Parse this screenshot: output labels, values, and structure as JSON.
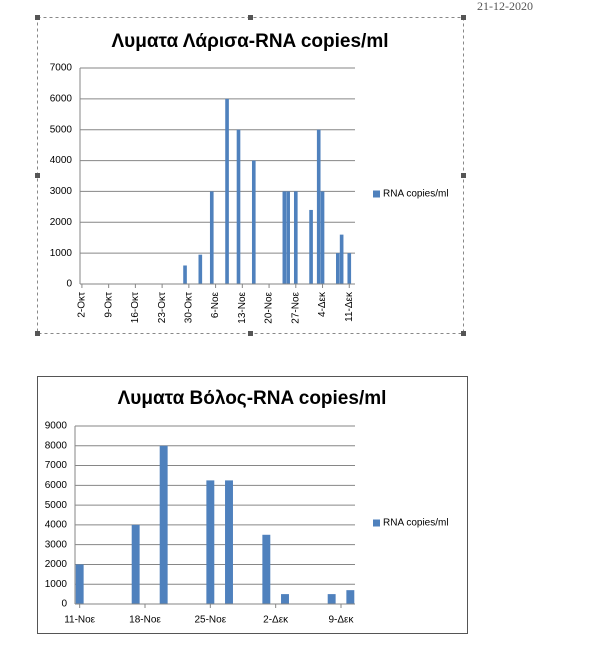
{
  "date": "21-12-2020",
  "chart_data": [
    {
      "type": "bar",
      "title": "Λυματα Λάρισα-RNA copies/ml",
      "categories": [
        "2-Οκτ",
        null,
        null,
        null,
        null,
        null,
        null,
        "9-Οκτ",
        null,
        null,
        null,
        null,
        null,
        null,
        "16-Οκτ",
        null,
        null,
        null,
        null,
        null,
        null,
        "23-Οκτ",
        null,
        null,
        null,
        null,
        null,
        null,
        "30-Οκτ",
        null,
        null,
        null,
        null,
        null,
        null,
        "6-Νοε",
        null,
        null,
        null,
        null,
        null,
        null,
        "13-Νοε",
        null,
        null,
        null,
        null,
        null,
        null,
        "20-Νοε",
        null,
        null,
        null,
        null,
        null,
        null,
        "27-Νοε",
        null,
        null,
        null,
        null,
        null,
        null,
        "4-Δεκ",
        null,
        null,
        null,
        null,
        null,
        null,
        "11-Δεκ",
        null
      ],
      "series": [
        {
          "name": "RNA copies/ml",
          "color": "#4f81bd",
          "values": [
            null,
            null,
            null,
            null,
            null,
            null,
            null,
            null,
            null,
            null,
            null,
            null,
            null,
            null,
            null,
            null,
            null,
            null,
            null,
            null,
            null,
            null,
            null,
            null,
            null,
            null,
            null,
            600,
            null,
            null,
            null,
            950,
            null,
            null,
            3000,
            null,
            null,
            null,
            6000,
            null,
            null,
            5000,
            null,
            null,
            null,
            4000,
            null,
            null,
            null,
            null,
            null,
            null,
            null,
            3000,
            3000,
            null,
            3000,
            null,
            null,
            null,
            2400,
            null,
            5000,
            3000,
            null,
            null,
            null,
            1000,
            1600,
            null,
            1000,
            null
          ]
        }
      ],
      "ylim": [
        0,
        7000
      ],
      "yticks": [
        0,
        1000,
        2000,
        3000,
        4000,
        5000,
        6000,
        7000
      ],
      "grid": true,
      "legend": "right"
    },
    {
      "type": "bar",
      "title": "Λυματα Βόλος-RNA copies/ml",
      "categories": [
        "11-Νοε",
        null,
        null,
        null,
        null,
        null,
        null,
        "18-Νοε",
        null,
        null,
        null,
        null,
        null,
        null,
        "25-Νοε",
        null,
        null,
        null,
        null,
        null,
        null,
        "2-Δεκ",
        null,
        null,
        null,
        null,
        null,
        null,
        "9-Δεκ",
        null
      ],
      "series": [
        {
          "name": "RNA copies/ml",
          "color": "#4f81bd",
          "values": [
            2000,
            null,
            null,
            null,
            null,
            null,
            4000,
            null,
            null,
            8000,
            null,
            null,
            null,
            null,
            6250,
            null,
            6250,
            null,
            null,
            null,
            3500,
            null,
            500,
            null,
            null,
            null,
            null,
            500,
            null,
            700
          ]
        }
      ],
      "ylim": [
        0,
        9000
      ],
      "yticks": [
        0,
        1000,
        2000,
        3000,
        4000,
        5000,
        6000,
        7000,
        8000,
        9000
      ],
      "grid": true,
      "legend": "right"
    }
  ]
}
